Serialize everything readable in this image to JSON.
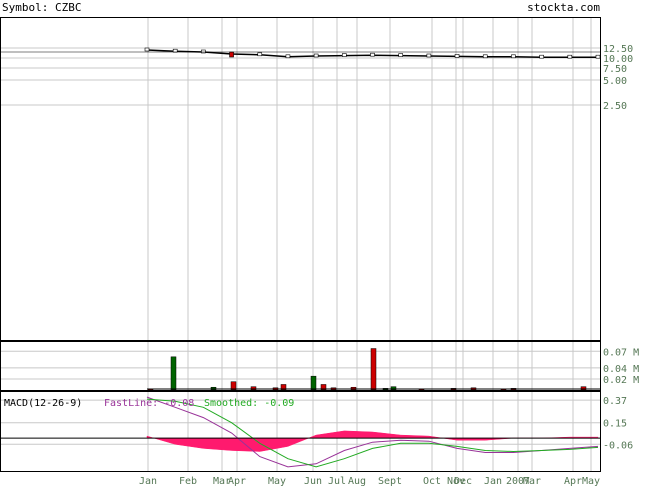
{
  "header": {
    "symbol_label": "Symbol: CZBC",
    "site": "stockta.com"
  },
  "colors": {
    "axis_text": "#557755",
    "grid": "#c8c8c8",
    "frame": "#000000",
    "up": "#006400",
    "down": "#cc0000",
    "macd_hist": "#ff1a6e",
    "fastline": "#993399",
    "smoothed": "#22aa22"
  },
  "chart_data": [
    {
      "type": "candlestick",
      "panel": "price",
      "y_ticks": [
        {
          "label": "12.50",
          "value": 12.5
        },
        {
          "label": "10.00",
          "value": 10.0
        },
        {
          "label": "7.50",
          "value": 7.5
        },
        {
          "label": "5.00",
          "value": 5.0
        },
        {
          "label": "2.50",
          "value": 2.5
        }
      ],
      "x_ticks": [
        "Jan",
        "Feb",
        "Mar",
        "Apr",
        "May",
        "Jun",
        "Jul",
        "Aug",
        "Sept",
        "Oct",
        "Nov",
        "Dec",
        "Jan",
        "2007",
        "Mar",
        "Apr",
        "May"
      ],
      "grid": true,
      "x": [
        "Jan",
        "Feb",
        "Mar",
        "Apr",
        "May",
        "Jun",
        "Jul",
        "Aug",
        "Sept",
        "Oct",
        "Nov",
        "Dec",
        "Jan",
        "2007",
        "Mar",
        "Apr",
        "May"
      ],
      "close": [
        12.0,
        11.7,
        11.5,
        11.0,
        10.8,
        10.3,
        10.5,
        10.6,
        10.7,
        10.6,
        10.5,
        10.4,
        10.3,
        10.3,
        10.2,
        10.2,
        10.2
      ]
    },
    {
      "type": "bar",
      "panel": "volume",
      "y_ticks": [
        {
          "label": "0.07 M",
          "value": 0.07
        },
        {
          "label": "0.04 M",
          "value": 0.04
        },
        {
          "label": "0.02 M",
          "value": 0.02
        }
      ],
      "grid": true,
      "values": [
        0.002,
        0.06,
        0.005,
        0.015,
        0.006,
        0.004,
        0.01,
        0.025,
        0.01,
        0.004,
        0.005,
        0.075,
        0.003,
        0.006,
        0.002,
        0.003,
        0.004,
        0.002,
        0.003,
        0.006
      ],
      "direction": [
        "down",
        "up",
        "up",
        "down",
        "down",
        "down",
        "down",
        "up",
        "down",
        "down",
        "down",
        "down",
        "up",
        "up",
        "down",
        "down",
        "down",
        "down",
        "down",
        "down"
      ]
    },
    {
      "type": "line",
      "panel": "macd",
      "title": "MACD(12-26-9)",
      "fastline_label": "FastLine: -0.08",
      "smoothed_label": "Smoothed: -0.09",
      "y_ticks": [
        {
          "label": "0.37",
          "value": 0.37
        },
        {
          "label": "0.15",
          "value": 0.15
        },
        {
          "label": "-0.06",
          "value": -0.06
        }
      ],
      "grid": true,
      "series": [
        {
          "name": "FastLine",
          "color": "#993399",
          "values": [
            0.4,
            0.3,
            0.2,
            0.05,
            -0.18,
            -0.28,
            -0.25,
            -0.12,
            -0.04,
            -0.02,
            -0.03,
            -0.1,
            -0.14,
            -0.14,
            -0.12,
            -0.1,
            -0.08
          ]
        },
        {
          "name": "Smoothed",
          "color": "#22aa22",
          "values": [
            0.38,
            0.36,
            0.3,
            0.15,
            -0.05,
            -0.2,
            -0.28,
            -0.2,
            -0.1,
            -0.05,
            -0.05,
            -0.08,
            -0.12,
            -0.13,
            -0.12,
            -0.11,
            -0.09
          ]
        }
      ],
      "histogram": [
        0.02,
        -0.06,
        -0.1,
        -0.12,
        -0.13,
        -0.08,
        0.03,
        0.07,
        0.06,
        0.03,
        0.02,
        -0.02,
        -0.02,
        0.0,
        0.0,
        0.01,
        0.01
      ]
    }
  ]
}
